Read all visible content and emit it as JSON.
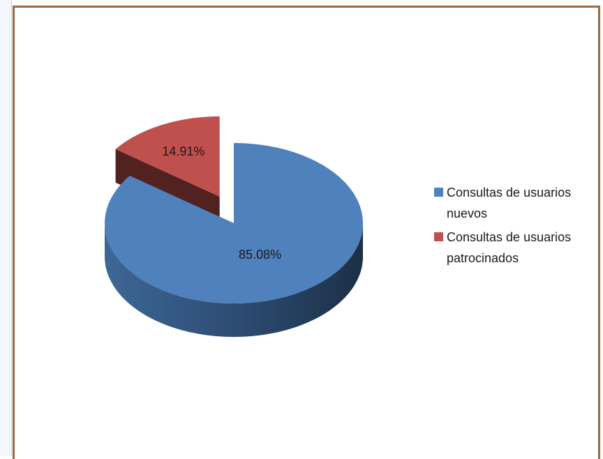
{
  "chart_data": {
    "type": "pie",
    "categories": [
      "Consultas de usuarios nuevos",
      "Consultas de usuarios patrocinados"
    ],
    "values": [
      85.08,
      14.91
    ],
    "value_labels": [
      "85.08%",
      "14.91%"
    ],
    "colors": [
      "#4f81bd",
      "#c0504d"
    ],
    "legend": "right"
  }
}
